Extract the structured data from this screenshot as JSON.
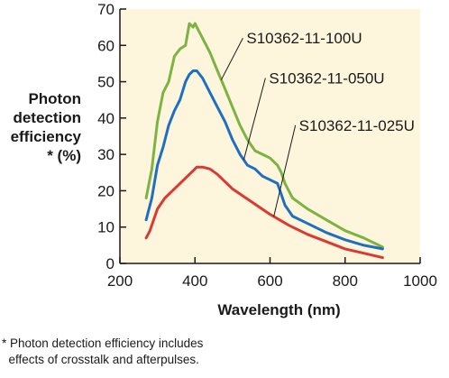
{
  "chart_data": {
    "type": "line",
    "xlabel": "Wavelength (nm)",
    "ylabel": [
      "Photon",
      "detection",
      "efficiency",
      "* (%)"
    ],
    "xlim": [
      200,
      1000
    ],
    "ylim": [
      0,
      70
    ],
    "xticks": [
      200,
      400,
      600,
      800,
      1000
    ],
    "yticks": [
      0,
      10,
      20,
      30,
      40,
      50,
      60,
      70
    ],
    "plot_background": "#fdf5dc",
    "grid": false,
    "series": [
      {
        "name": "S10362-11-100U",
        "color": "#7cb342",
        "x": [
          270,
          285,
          300,
          315,
          330,
          345,
          360,
          375,
          385,
          395,
          400,
          410,
          420,
          440,
          460,
          480,
          500,
          520,
          540,
          560,
          580,
          600,
          620,
          630,
          640,
          660,
          700,
          750,
          800,
          850,
          900
        ],
        "y": [
          18,
          26,
          39,
          47,
          50,
          57,
          59,
          60,
          66,
          65,
          66,
          64,
          62,
          58,
          53,
          48,
          43,
          38,
          34,
          31,
          30,
          29,
          27,
          25,
          22,
          18,
          15,
          12,
          9,
          7,
          4.5
        ]
      },
      {
        "name": "S10362-11-050U",
        "color": "#1e6fc0",
        "x": [
          270,
          285,
          300,
          315,
          330,
          345,
          360,
          375,
          385,
          395,
          405,
          420,
          440,
          460,
          480,
          500,
          520,
          540,
          560,
          580,
          600,
          620,
          630,
          640,
          660,
          700,
          750,
          800,
          850,
          900
        ],
        "y": [
          12,
          18,
          27,
          32,
          38,
          42,
          45,
          50,
          52,
          53,
          53,
          51,
          47,
          43,
          39,
          34,
          30,
          27,
          26,
          24,
          23,
          22,
          19,
          16,
          13,
          11,
          8.5,
          6.5,
          5,
          4
        ]
      },
      {
        "name": "S10362-11-025U",
        "color": "#d93a33",
        "x": [
          270,
          280,
          300,
          320,
          340,
          360,
          380,
          395,
          405,
          420,
          440,
          460,
          480,
          500,
          550,
          600,
          650,
          700,
          750,
          800,
          850,
          900
        ],
        "y": [
          7,
          9,
          15,
          18,
          20,
          22,
          24,
          25.5,
          26.5,
          26.5,
          26,
          24.5,
          22.5,
          20.5,
          17,
          13.5,
          10.5,
          8,
          6,
          4,
          2.8,
          1.6
        ]
      }
    ],
    "annotations": [
      {
        "text": "S10362-11-100U",
        "series": 0,
        "x": 470,
        "y": 62
      },
      {
        "text": "S10362-11-050U",
        "series": 1,
        "x": 530,
        "y": 51
      },
      {
        "text": "S10362-11-025U",
        "series": 2,
        "x": 610,
        "y": 38
      }
    ]
  },
  "footnote": {
    "line1": "* Photon detection efficiency includes",
    "line2": "  effects of crosstalk and afterpulses."
  }
}
